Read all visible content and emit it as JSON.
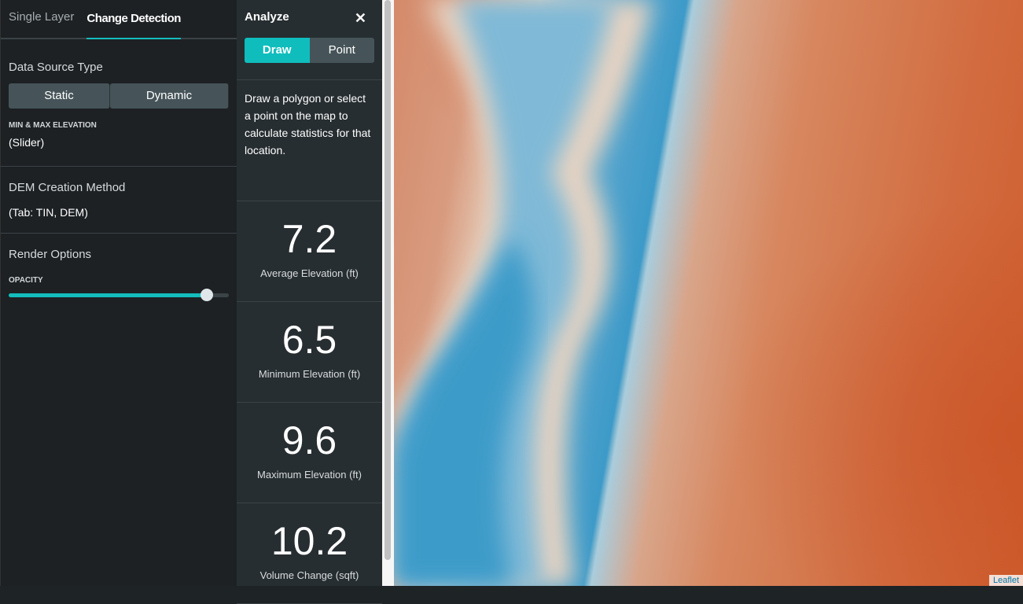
{
  "tabs": [
    {
      "label": "Single Layer",
      "active": false
    },
    {
      "label": "Change Detection",
      "active": true
    }
  ],
  "data_source": {
    "title": "Data Source Type",
    "options": [
      "Static",
      "Dynamic"
    ]
  },
  "elevation": {
    "label": "MIN & MAX ELEVATION",
    "value": "(Slider)"
  },
  "dem": {
    "title": "DEM Creation Method",
    "value": "(Tab: TIN, DEM)"
  },
  "render": {
    "title": "Render Options",
    "opacity_label": "OPACITY",
    "opacity_value": 0.9
  },
  "analyze": {
    "title": "Analyze",
    "close_icon": "close-icon",
    "modes": [
      "Draw",
      "Point"
    ],
    "active_mode": "Draw",
    "description": "Draw a polygon or select a point on the map to calculate statistics for that location.",
    "stats": [
      {
        "value": "7.2",
        "label": "Average Elevation (ft)"
      },
      {
        "value": "6.5",
        "label": "Minimum Elevation (ft)"
      },
      {
        "value": "9.6",
        "label": "Maximum Elevation (ft)"
      },
      {
        "value": "10.2",
        "label": "Volume Change (sqft)"
      }
    ]
  },
  "map": {
    "attribution": "Leaflet"
  },
  "colors": {
    "accent": "#14bdbd",
    "panel": "#1d2124"
  }
}
